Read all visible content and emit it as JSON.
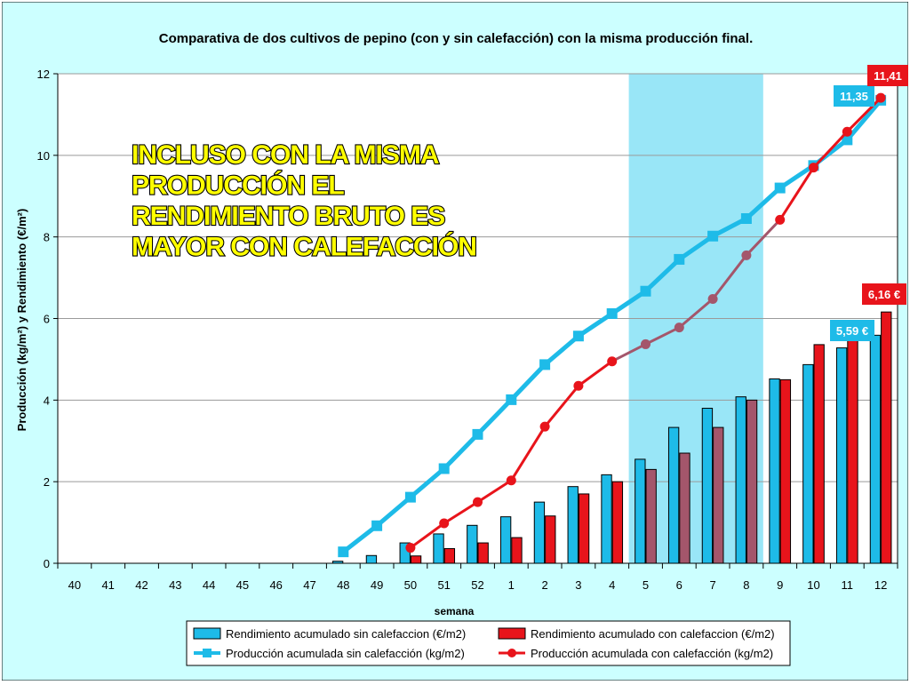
{
  "chart_data": {
    "type": "bar",
    "title": "Comparativa de dos cultivos de pepino (con y sin calefacción) con la misma producción final.",
    "xlabel": "semana",
    "ylabel": "Producción (kg/m²) y Rendimiento (€/m²)",
    "ylim": [
      0,
      12
    ],
    "yticks": [
      0,
      2,
      4,
      6,
      8,
      10,
      12
    ],
    "grid": true,
    "legend_position": "bottom",
    "categories": [
      "40",
      "41",
      "42",
      "43",
      "44",
      "45",
      "46",
      "47",
      "48",
      "49",
      "50",
      "51",
      "52",
      "1",
      "2",
      "3",
      "4",
      "5",
      "6",
      "7",
      "8",
      "9",
      "10",
      "11",
      "12"
    ],
    "highlight_range": [
      "5",
      "8"
    ],
    "series": [
      {
        "name": "Rendimiento acumulado sin calefaccion (€/m2)",
        "kind": "bar",
        "color": "#1ebbe8",
        "values": [
          null,
          null,
          null,
          null,
          null,
          null,
          null,
          null,
          0.05,
          0.19,
          0.5,
          0.72,
          0.93,
          1.14,
          1.5,
          1.88,
          2.17,
          2.55,
          3.33,
          3.8,
          4.08,
          4.52,
          4.87,
          5.28,
          5.59
        ]
      },
      {
        "name": "Rendimiento acumulado con calefaccion (€/m2)",
        "kind": "bar",
        "color": "#e8141b",
        "values": [
          null,
          null,
          null,
          null,
          null,
          null,
          null,
          null,
          null,
          null,
          0.18,
          0.36,
          0.5,
          0.63,
          1.16,
          1.7,
          2.0,
          2.3,
          2.7,
          3.33,
          4.0,
          4.5,
          5.36,
          5.5,
          6.16
        ]
      },
      {
        "name": "Producción acumulada sin calefacción (kg/m2)",
        "kind": "line",
        "color": "#1ebbe8",
        "values": [
          null,
          null,
          null,
          null,
          null,
          null,
          null,
          null,
          0.28,
          0.92,
          1.62,
          2.32,
          3.16,
          4.01,
          4.87,
          5.57,
          6.12,
          6.67,
          7.45,
          8.02,
          8.45,
          9.2,
          9.75,
          10.38,
          11.35
        ]
      },
      {
        "name": "Producción acumulada con calefacción (kg/m2)",
        "kind": "line",
        "color": "#e8141b",
        "values": [
          null,
          null,
          null,
          null,
          null,
          null,
          null,
          null,
          null,
          null,
          0.38,
          0.98,
          1.5,
          2.03,
          3.35,
          4.35,
          4.95,
          5.37,
          5.78,
          6.48,
          7.55,
          8.42,
          9.7,
          10.58,
          11.41
        ]
      }
    ],
    "data_labels": {
      "line_sin_last": "11,35",
      "line_con_last": "11,41",
      "bar_sin_last": "5,59 €",
      "bar_con_last": "6,16 €"
    },
    "annotation": "INCLUSO CON LA MISMA PRODUCCIÓN EL RENDIMIENTO BRUTO ES MAYOR CON CALEFACCIÓN",
    "colors": {
      "background": "#ccffff",
      "plot_background": "#ffffff",
      "highlight": "#99e6f7",
      "bar_in_highlight_red": "#a4566b",
      "line_in_highlight_red": "#a4566b",
      "annotation_text": "#ffff00",
      "annotation_stroke": "#000000"
    }
  }
}
